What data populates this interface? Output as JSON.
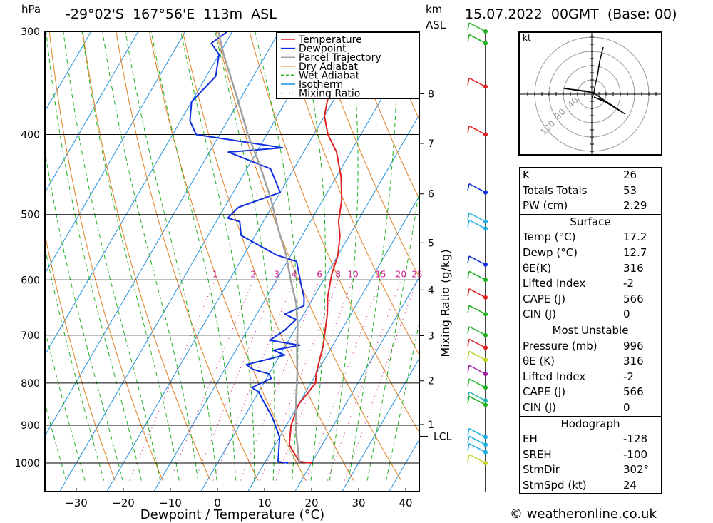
{
  "header": {
    "location": "-29°02'S  167°56'E  113m  ASL",
    "datetime": "15.07.2022  00GMT  (Base: 00)",
    "left_unit": "hPa",
    "right_unit_km": "km",
    "right_unit_asl": "ASL"
  },
  "chart_data": {
    "type": "line",
    "subtype": "skew-T log-P diagram",
    "xlabel": "Dewpoint / Temperature (°C)",
    "ylabel_right": "Mixing Ratio (g/kg)",
    "x_ticks": [
      -30,
      -20,
      -10,
      0,
      10,
      20,
      30,
      40
    ],
    "pressure_levels": [
      300,
      400,
      500,
      600,
      700,
      800,
      900,
      1000
    ],
    "km_levels": [
      {
        "km": "8",
        "p": 357
      },
      {
        "km": "7",
        "p": 410
      },
      {
        "km": "6",
        "p": 472
      },
      {
        "km": "5",
        "p": 541
      },
      {
        "km": "4",
        "p": 617
      },
      {
        "km": "3",
        "p": 701
      },
      {
        "km": "2",
        "p": 795
      },
      {
        "km": "1",
        "p": 898
      }
    ],
    "lcl": {
      "label": "LCL",
      "p": 928
    },
    "mixing_ratio_labels": [
      "1",
      "2",
      "3",
      "4",
      "6",
      "8",
      "10",
      "15",
      "20",
      "25"
    ],
    "mixing_ratio_values": [
      1,
      2,
      3,
      4,
      6,
      8,
      10,
      15,
      20,
      25
    ],
    "legend": {
      "position": "top-center",
      "entries": [
        {
          "name": "Temperature",
          "color": "#e02020",
          "style": "solid"
        },
        {
          "name": "Dewpoint",
          "color": "#1030e0",
          "style": "solid"
        },
        {
          "name": "Parcel Trajectory",
          "color": "#a0a0a0",
          "style": "solid"
        },
        {
          "name": "Dry Adiabat",
          "color": "#e08020",
          "style": "solid"
        },
        {
          "name": "Wet Adiabat",
          "color": "#20b020",
          "style": "dashed"
        },
        {
          "name": "Isotherm",
          "color": "#2090e0",
          "style": "solid"
        },
        {
          "name": "Mixing Ratio",
          "color": "#d02090",
          "style": "dotted"
        }
      ]
    },
    "series": [
      {
        "name": "Temperature",
        "color": "#e02020",
        "points": [
          [
            20,
            1000
          ],
          [
            17.2,
            996
          ],
          [
            13,
            950
          ],
          [
            11,
            900
          ],
          [
            10,
            850
          ],
          [
            11,
            800
          ],
          [
            10,
            780
          ],
          [
            9,
            750
          ],
          [
            8,
            720
          ],
          [
            7,
            700
          ],
          [
            5,
            660
          ],
          [
            3,
            630
          ],
          [
            2,
            610
          ],
          [
            1,
            590
          ],
          [
            0,
            560
          ],
          [
            -2,
            530
          ],
          [
            -4,
            510
          ],
          [
            -6,
            480
          ],
          [
            -9,
            450
          ],
          [
            -13,
            420
          ],
          [
            -17,
            400
          ],
          [
            -20,
            380
          ],
          [
            -22,
            355
          ],
          [
            -24,
            330
          ],
          [
            -26,
            315
          ],
          [
            -24,
            307
          ],
          [
            -25,
            300
          ]
        ]
      },
      {
        "name": "Dewpoint",
        "color": "#1030e0",
        "points": [
          [
            15,
            1000
          ],
          [
            12.7,
            996
          ],
          [
            10,
            930
          ],
          [
            6,
            880
          ],
          [
            2,
            840
          ],
          [
            0,
            820
          ],
          [
            -2,
            810
          ],
          [
            1,
            790
          ],
          [
            0,
            780
          ],
          [
            -4,
            770
          ],
          [
            -6,
            760
          ],
          [
            1,
            740
          ],
          [
            -2,
            730
          ],
          [
            3,
            720
          ],
          [
            -4,
            710
          ],
          [
            -2,
            690
          ],
          [
            -1,
            670
          ],
          [
            -4,
            660
          ],
          [
            -1,
            645
          ],
          [
            -2,
            630
          ],
          [
            -4,
            610
          ],
          [
            -8,
            570
          ],
          [
            -13,
            560
          ],
          [
            -23,
            530
          ],
          [
            -25,
            510
          ],
          [
            -28,
            505
          ],
          [
            -27,
            490
          ],
          [
            -20,
            470
          ],
          [
            -25,
            440
          ],
          [
            -36,
            420
          ],
          [
            -25,
            415
          ],
          [
            -45,
            400
          ],
          [
            -48,
            385
          ],
          [
            -50,
            365
          ],
          [
            -48,
            340
          ],
          [
            -50,
            320
          ],
          [
            -53,
            310
          ],
          [
            -51,
            300
          ]
        ]
      },
      {
        "name": "Parcel Trajectory",
        "color": "#a0a0a0",
        "points": [
          [
            17.2,
            996
          ],
          [
            13.5,
            928
          ],
          [
            11,
            880
          ],
          [
            8.5,
            830
          ],
          [
            6,
            780
          ],
          [
            3,
            730
          ],
          [
            0,
            680
          ],
          [
            -3,
            640
          ],
          [
            -7,
            600
          ],
          [
            -11,
            560
          ],
          [
            -16,
            520
          ],
          [
            -21,
            480
          ],
          [
            -27,
            440
          ],
          [
            -34,
            400
          ],
          [
            -41,
            360
          ],
          [
            -49,
            320
          ],
          [
            -53,
            300
          ]
        ]
      }
    ],
    "wind_barb_levels": [
      300,
      310,
      350,
      400,
      470,
      510,
      520,
      575,
      600,
      630,
      660,
      700,
      725,
      750,
      780,
      810,
      840,
      850,
      930,
      950,
      970,
      1000
    ],
    "hodograph": {
      "unit_label": "kt",
      "ring_labels": [
        "40",
        "80",
        "120"
      ]
    }
  },
  "indices": {
    "general": [
      {
        "k": "K",
        "v": "26"
      },
      {
        "k": "Totals Totals",
        "v": "53"
      },
      {
        "k": "PW (cm)",
        "v": "2.29"
      }
    ],
    "surface_title": "Surface",
    "surface": [
      {
        "k": "Temp (°C)",
        "v": "17.2"
      },
      {
        "k": "Dewp (°C)",
        "v": "12.7"
      },
      {
        "k": "θE(K)",
        "v": "316"
      },
      {
        "k": "Lifted Index",
        "v": "-2"
      },
      {
        "k": "CAPE (J)",
        "v": "566"
      },
      {
        "k": "CIN (J)",
        "v": "0"
      }
    ],
    "mu_title": "Most Unstable",
    "mu": [
      {
        "k": "Pressure (mb)",
        "v": "996"
      },
      {
        "k": "θE (K)",
        "v": "316"
      },
      {
        "k": "Lifted Index",
        "v": "-2"
      },
      {
        "k": "CAPE (J)",
        "v": "566"
      },
      {
        "k": "CIN (J)",
        "v": "0"
      }
    ],
    "hodo_title": "Hodograph",
    "hodo": [
      {
        "k": "EH",
        "v": "-128"
      },
      {
        "k": "SREH",
        "v": "-100"
      },
      {
        "k": "StmDir",
        "v": "302°"
      },
      {
        "k": "StmSpd (kt)",
        "v": "24"
      }
    ]
  },
  "footer": {
    "credit": "© weatheronline.co.uk"
  }
}
